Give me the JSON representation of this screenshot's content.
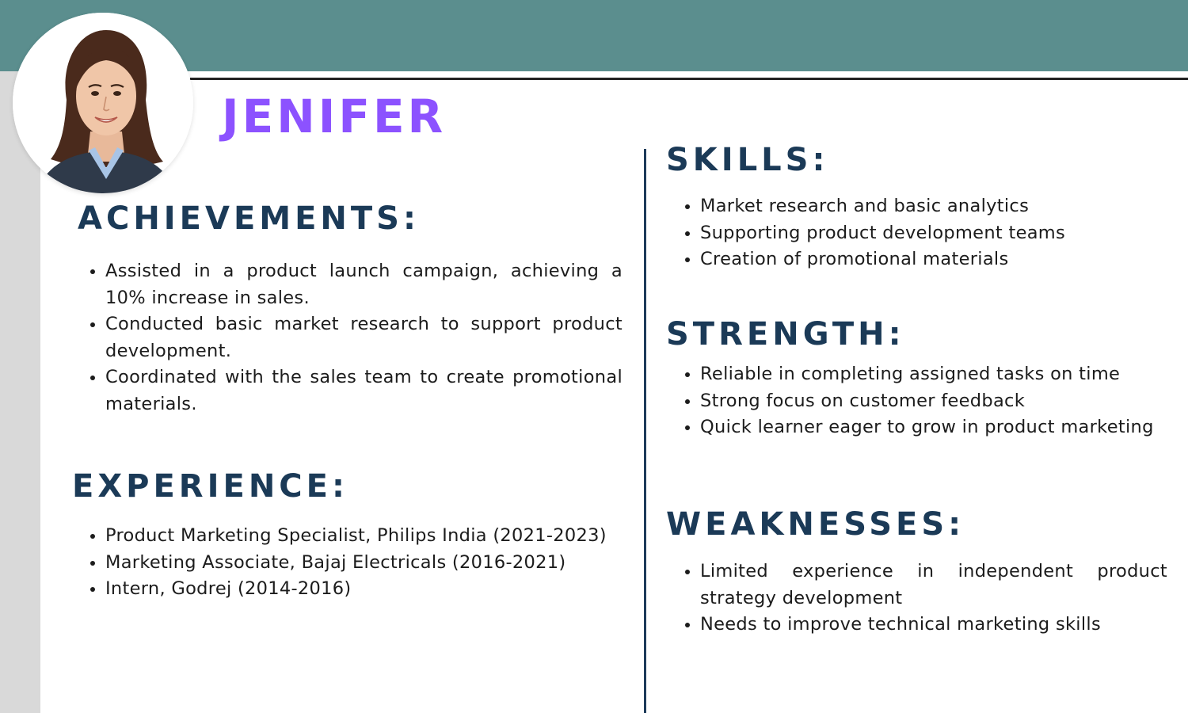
{
  "name": "JENIFER",
  "colors": {
    "header_band": "#5b8e8e",
    "name": "#8c52ff",
    "heading": "#1b3a57",
    "left_strip": "#d9d9d9",
    "divider": "#1d3b5a"
  },
  "photo": {
    "icon": "profile-photo"
  },
  "achievements": {
    "heading": "ACHIEVEMENTS:",
    "items": [
      "Assisted in a product launch campaign, achieving a 10% increase in sales.",
      "Conducted basic market research to support product development.",
      "Coordinated with the sales team to create promotional materials."
    ]
  },
  "experience": {
    "heading": "EXPERIENCE:",
    "items": [
      "Product Marketing Specialist, Philips India (2021-2023)",
      "Marketing Associate, Bajaj Electricals (2016-2021)",
      "Intern, Godrej (2014-2016)"
    ]
  },
  "skills": {
    "heading": "SKILLS:",
    "items": [
      "Market research and basic analytics",
      "Supporting product development teams",
      "Creation of promotional materials"
    ]
  },
  "strength": {
    "heading": "STRENGTH:",
    "items": [
      "Reliable in completing assigned tasks on time",
      "Strong focus on customer feedback",
      "Quick learner eager to grow in product marketing"
    ]
  },
  "weaknesses": {
    "heading": "WEAKNESSES:",
    "items": [
      "Limited experience in independent product strategy development",
      "Needs to improve technical marketing skills"
    ]
  }
}
